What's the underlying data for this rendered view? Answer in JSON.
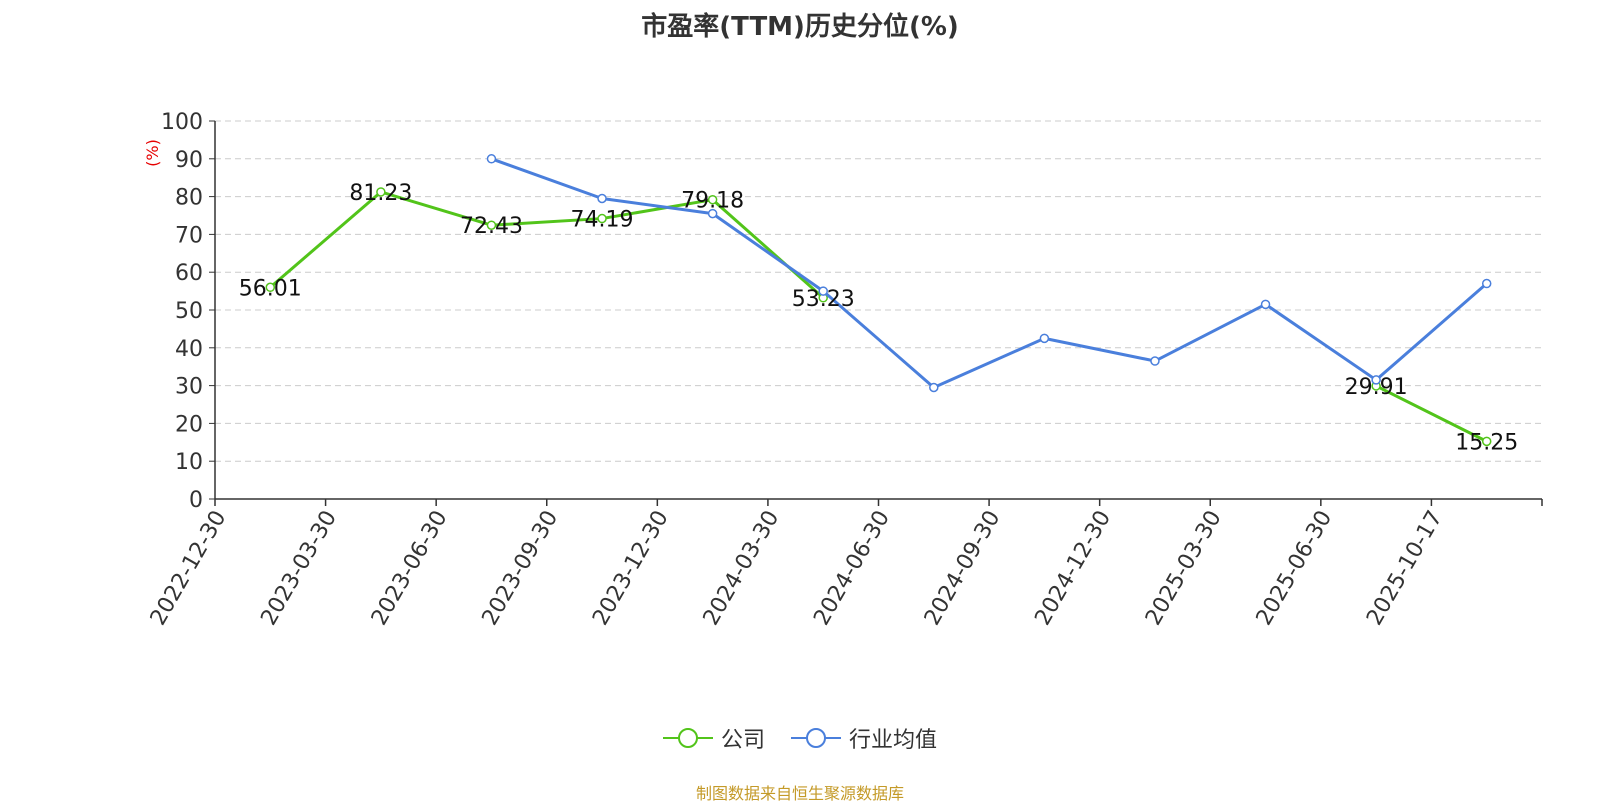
{
  "chart_data": {
    "type": "line",
    "title": "市盈率(TTM)历史分位(%)",
    "ylabel": "(%)",
    "ylim": [
      0,
      100
    ],
    "yticks": [
      0,
      10,
      20,
      30,
      40,
      50,
      60,
      70,
      80,
      90,
      100
    ],
    "grid": true,
    "legend_position": "bottom",
    "categories": [
      "2022-12-30",
      "2023-03-30",
      "2023-06-30",
      "2023-09-30",
      "2023-12-30",
      "2024-03-30",
      "2024-06-30",
      "2024-09-30",
      "2024-12-30",
      "2025-03-30",
      "2025-06-30",
      "2025-10-17"
    ],
    "series": [
      {
        "name": "公司",
        "color": "#52c41a",
        "values": [
          56.01,
          81.23,
          72.43,
          74.19,
          79.18,
          53.23,
          null,
          null,
          null,
          null,
          29.91,
          15.25
        ],
        "labels": [
          "56.01",
          "81.23",
          "72.43",
          "74.19",
          "79.18",
          "53.23",
          null,
          null,
          null,
          null,
          "29.91",
          "15.25"
        ]
      },
      {
        "name": "行业均值",
        "color": "#4a7fdc",
        "values": [
          null,
          null,
          90.0,
          79.5,
          75.5,
          55.0,
          29.5,
          42.5,
          36.5,
          51.5,
          31.5,
          57.0
        ]
      }
    ]
  },
  "source_text": "制图数据来自恒生聚源数据库"
}
